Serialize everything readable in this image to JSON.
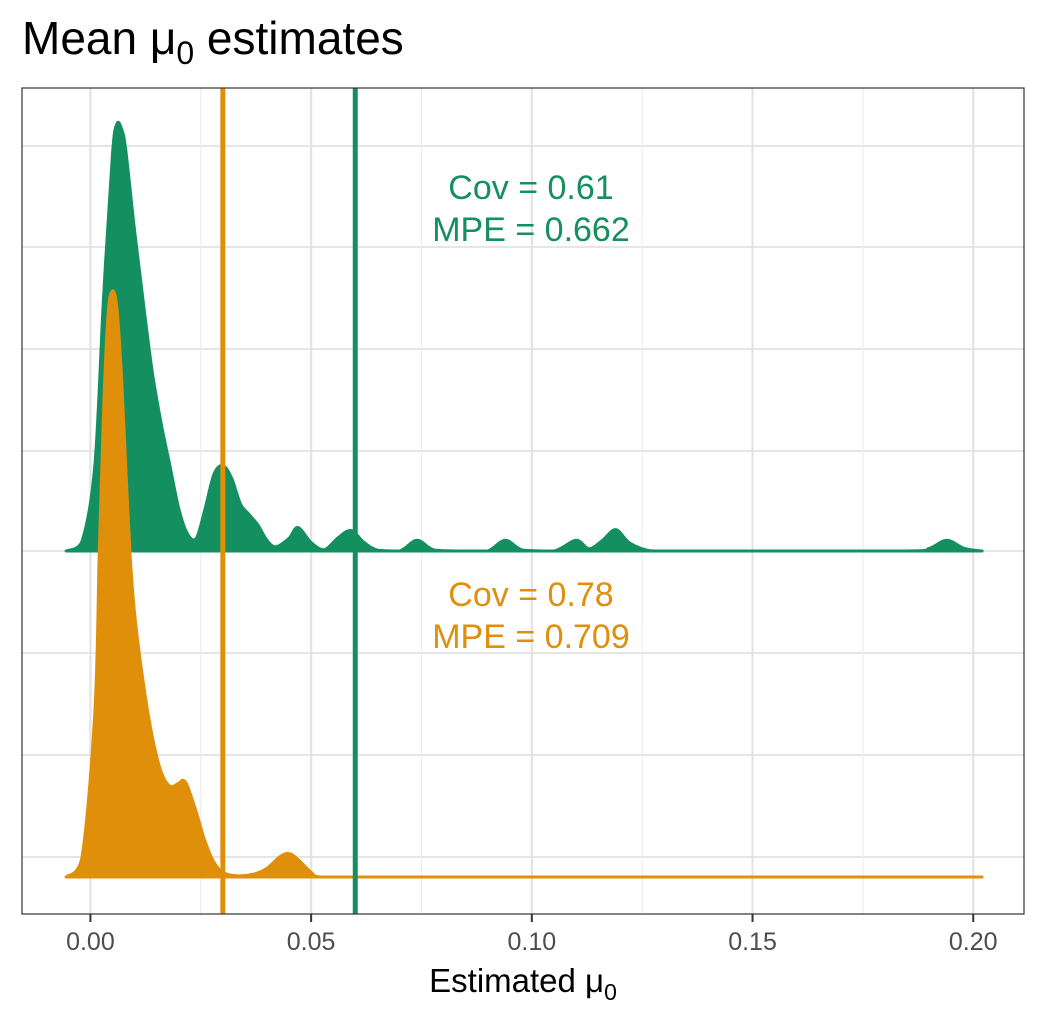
{
  "chart_data": {
    "type": "area",
    "subtype": "ridgeline-density",
    "title": "Mean μ",
    "title_subscript": "0",
    "title_suffix": " estimates",
    "xlabel": "Estimated μ",
    "xlabel_subscript": "0",
    "ylabel": "",
    "xlim": [
      -0.0155,
      0.2115
    ],
    "x_ticks": [
      0.0,
      0.05,
      0.1,
      0.15,
      0.2
    ],
    "x_tick_labels": [
      "0.00",
      "0.05",
      "0.10",
      "0.15",
      "0.20"
    ],
    "grid": true,
    "y_tick_labels": [],
    "series": [
      {
        "color": "#148F5F",
        "reference_line": 0.06,
        "annotation": [
          "Cov = 0.61",
          "MPE = 0.662"
        ],
        "density": {
          "x": [
            -0.0055,
            -0.002,
            0.001,
            0.003,
            0.005,
            0.006,
            0.007,
            0.008,
            0.01,
            0.012,
            0.014,
            0.016,
            0.018,
            0.02,
            0.022,
            0.024,
            0.026,
            0.028,
            0.03,
            0.032,
            0.034,
            0.036,
            0.038,
            0.04,
            0.042,
            0.045,
            0.047,
            0.05,
            0.053,
            0.056,
            0.059,
            0.062,
            0.065,
            0.07,
            0.074,
            0.078,
            0.085,
            0.09,
            0.094,
            0.098,
            0.105,
            0.11,
            0.113,
            0.116,
            0.119,
            0.122,
            0.126,
            0.13,
            0.15,
            0.185,
            0.19,
            0.194,
            0.198,
            0.202
          ],
          "density": [
            0.0,
            0.02,
            0.2,
            0.6,
            0.93,
            1.0,
            0.99,
            0.94,
            0.75,
            0.58,
            0.42,
            0.3,
            0.2,
            0.1,
            0.04,
            0.03,
            0.1,
            0.18,
            0.2,
            0.17,
            0.11,
            0.085,
            0.06,
            0.025,
            0.01,
            0.03,
            0.055,
            0.02,
            0.003,
            0.03,
            0.048,
            0.02,
            0.002,
            0.0,
            0.025,
            0.002,
            0.0,
            0.0,
            0.025,
            0.002,
            0.0,
            0.025,
            0.005,
            0.025,
            0.05,
            0.02,
            0.002,
            0.0,
            0.0,
            0.0,
            0.006,
            0.025,
            0.006,
            0.0
          ]
        }
      },
      {
        "color": "#E08F0B",
        "reference_line": 0.03,
        "annotation": [
          "Cov = 0.78",
          "MPE = 0.709"
        ],
        "density": {
          "x": [
            -0.0055,
            -0.002,
            0.001,
            0.002,
            0.003,
            0.004,
            0.005,
            0.006,
            0.007,
            0.008,
            0.009,
            0.01,
            0.012,
            0.014,
            0.016,
            0.018,
            0.02,
            0.021,
            0.022,
            0.024,
            0.026,
            0.028,
            0.03,
            0.033,
            0.037,
            0.04,
            0.043,
            0.045,
            0.047,
            0.05,
            0.052,
            0.06,
            0.1,
            0.15,
            0.202
          ],
          "density": [
            0.0,
            0.03,
            0.28,
            0.55,
            0.8,
            0.96,
            1.0,
            0.97,
            0.86,
            0.7,
            0.55,
            0.45,
            0.33,
            0.24,
            0.18,
            0.155,
            0.16,
            0.165,
            0.155,
            0.11,
            0.06,
            0.025,
            0.008,
            0.002,
            0.005,
            0.015,
            0.035,
            0.04,
            0.03,
            0.008,
            0.0,
            0.0,
            0.0,
            0.0,
            0.0
          ]
        }
      }
    ]
  }
}
